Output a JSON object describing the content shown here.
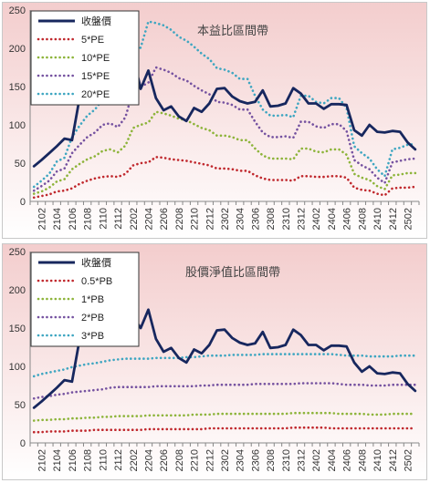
{
  "chart_data": [
    {
      "type": "line",
      "title": "本益比區間帶",
      "ylim": [
        0,
        250
      ],
      "yticks": [
        0,
        50,
        100,
        150,
        200,
        250
      ],
      "x": [
        "2101",
        "2102",
        "2103",
        "2104",
        "2105",
        "2106",
        "2107",
        "2108",
        "2109",
        "2110",
        "2111",
        "2112",
        "2201",
        "2202",
        "2203",
        "2204",
        "2205",
        "2206",
        "2207",
        "2208",
        "2209",
        "2210",
        "2211",
        "2212",
        "2301",
        "2302",
        "2303",
        "2304",
        "2305",
        "2306",
        "2307",
        "2308",
        "2309",
        "2310",
        "2311",
        "2312",
        "2401",
        "2402",
        "2403",
        "2404",
        "2405",
        "2406",
        "2407",
        "2408",
        "2409",
        "2410",
        "2411",
        "2412",
        "2501",
        "2502",
        "2503"
      ],
      "xtick_labels": [
        "2102",
        "2104",
        "2106",
        "2108",
        "2110",
        "2112",
        "2202",
        "2204",
        "2206",
        "2208",
        "2210",
        "2212",
        "2302",
        "2304",
        "2306",
        "2308",
        "2310",
        "2312",
        "2402",
        "2404",
        "2406",
        "2408",
        "2410",
        "2412",
        "2502"
      ],
      "legend": "top-left",
      "series": [
        {
          "name": "收盤價",
          "color": "#17275e",
          "dash": "solid",
          "values": [
            46,
            54,
            63,
            72,
            82,
            80,
            136,
            145,
            147,
            142,
            140,
            138,
            132,
            190,
            147,
            171,
            135,
            119,
            124,
            111,
            105,
            122,
            117,
            128,
            147,
            148,
            137,
            131,
            128,
            130,
            145,
            124,
            125,
            128,
            148,
            141,
            128,
            128,
            121,
            127,
            127,
            126,
            93,
            86,
            100,
            91,
            90,
            92,
            91,
            77,
            68
          ]
        },
        {
          "name": "5*PE",
          "color": "#c0282d",
          "dash": "dot",
          "values": [
            5,
            7,
            9,
            13,
            14,
            17,
            23,
            27,
            30,
            32,
            33,
            32,
            36,
            47,
            50,
            51,
            58,
            57,
            55,
            54,
            53,
            51,
            49,
            47,
            43,
            43,
            42,
            40,
            40,
            34,
            30,
            28,
            28,
            28,
            27,
            33,
            33,
            32,
            32,
            33,
            33,
            31,
            18,
            15,
            14,
            10,
            8,
            17,
            18,
            18,
            19
          ]
        },
        {
          "name": "10*PE",
          "color": "#8db43a",
          "dash": "dot",
          "values": [
            10,
            13,
            18,
            26,
            29,
            42,
            49,
            55,
            59,
            66,
            68,
            64,
            73,
            96,
            100,
            103,
            117,
            115,
            112,
            108,
            106,
            101,
            96,
            93,
            86,
            86,
            84,
            80,
            80,
            69,
            60,
            56,
            56,
            56,
            55,
            69,
            69,
            65,
            64,
            68,
            68,
            61,
            36,
            31,
            28,
            20,
            16,
            34,
            35,
            37,
            37
          ]
        },
        {
          "name": "15*PE",
          "color": "#7552a0",
          "dash": "dot",
          "values": [
            14,
            20,
            27,
            39,
            43,
            63,
            74,
            84,
            90,
            100,
            102,
            97,
            110,
            145,
            150,
            155,
            175,
            172,
            168,
            161,
            158,
            151,
            145,
            140,
            130,
            129,
            126,
            120,
            120,
            104,
            90,
            84,
            84,
            85,
            83,
            104,
            104,
            98,
            96,
            101,
            101,
            92,
            54,
            47,
            42,
            31,
            24,
            51,
            53,
            55,
            56
          ]
        },
        {
          "name": "20*PE",
          "color": "#3ea6c1",
          "dash": "dot",
          "values": [
            19,
            27,
            36,
            52,
            57,
            84,
            99,
            112,
            120,
            133,
            137,
            129,
            146,
            193,
            201,
            235,
            233,
            230,
            224,
            215,
            210,
            202,
            193,
            186,
            174,
            172,
            168,
            160,
            160,
            138,
            120,
            112,
            112,
            113,
            110,
            138,
            138,
            130,
            128,
            135,
            135,
            122,
            72,
            63,
            56,
            42,
            33,
            68,
            70,
            74,
            75
          ]
        }
      ]
    },
    {
      "type": "line",
      "title": "股價淨值比區間帶",
      "ylim": [
        0,
        250
      ],
      "yticks": [
        0,
        50,
        100,
        150,
        200,
        250
      ],
      "x": [
        "2101",
        "2102",
        "2103",
        "2104",
        "2105",
        "2106",
        "2107",
        "2108",
        "2109",
        "2110",
        "2111",
        "2112",
        "2201",
        "2202",
        "2203",
        "2204",
        "2205",
        "2206",
        "2207",
        "2208",
        "2209",
        "2210",
        "2211",
        "2212",
        "2301",
        "2302",
        "2303",
        "2304",
        "2305",
        "2306",
        "2307",
        "2308",
        "2309",
        "2310",
        "2311",
        "2312",
        "2401",
        "2402",
        "2403",
        "2404",
        "2405",
        "2406",
        "2407",
        "2408",
        "2409",
        "2410",
        "2411",
        "2412",
        "2501",
        "2502",
        "2503"
      ],
      "xtick_labels": [
        "2102",
        "2104",
        "2106",
        "2108",
        "2110",
        "2112",
        "2202",
        "2204",
        "2206",
        "2208",
        "2210",
        "2212",
        "2302",
        "2304",
        "2306",
        "2308",
        "2310",
        "2312",
        "2402",
        "2404",
        "2406",
        "2408",
        "2410",
        "2412",
        "2502"
      ],
      "legend": "top-left",
      "series": [
        {
          "name": "收盤價",
          "color": "#17275e",
          "dash": "solid",
          "values": [
            46,
            54,
            63,
            72,
            82,
            80,
            136,
            165,
            147,
            153,
            140,
            145,
            139,
            165,
            150,
            174,
            136,
            119,
            124,
            111,
            105,
            122,
            117,
            128,
            147,
            148,
            137,
            131,
            128,
            130,
            145,
            124,
            125,
            128,
            148,
            141,
            128,
            128,
            121,
            127,
            127,
            126,
            105,
            93,
            100,
            91,
            90,
            92,
            91,
            77,
            68
          ]
        },
        {
          "name": "0.5*PB",
          "color": "#c0282d",
          "dash": "dot",
          "values": [
            14,
            14,
            15,
            15,
            15,
            16,
            16,
            16,
            17,
            17,
            17,
            17,
            17,
            17,
            17,
            18,
            18,
            18,
            18,
            18,
            18,
            18,
            18,
            19,
            19,
            19,
            19,
            19,
            19,
            19,
            19,
            19,
            19,
            19,
            20,
            20,
            20,
            20,
            20,
            19,
            19,
            19,
            19,
            19,
            19,
            19,
            19,
            19,
            19,
            19,
            19
          ]
        },
        {
          "name": "1*PB",
          "color": "#8db43a",
          "dash": "dot",
          "values": [
            29,
            30,
            30,
            31,
            31,
            32,
            32,
            33,
            33,
            34,
            34,
            35,
            35,
            35,
            35,
            36,
            36,
            36,
            36,
            36,
            36,
            37,
            37,
            37,
            38,
            38,
            38,
            38,
            38,
            38,
            38,
            38,
            38,
            38,
            39,
            39,
            39,
            39,
            39,
            39,
            38,
            38,
            38,
            38,
            37,
            37,
            37,
            38,
            38,
            38,
            38
          ]
        },
        {
          "name": "2*PB",
          "color": "#7552a0",
          "dash": "dot",
          "values": [
            58,
            60,
            61,
            63,
            64,
            66,
            67,
            68,
            69,
            70,
            72,
            73,
            73,
            73,
            73,
            73,
            74,
            74,
            74,
            74,
            74,
            74,
            75,
            75,
            76,
            76,
            76,
            76,
            76,
            77,
            77,
            77,
            77,
            77,
            77,
            78,
            78,
            78,
            78,
            78,
            77,
            76,
            76,
            76,
            75,
            75,
            75,
            76,
            76,
            76,
            76
          ]
        },
        {
          "name": "3*PB",
          "color": "#3ea6c1",
          "dash": "dot",
          "values": [
            87,
            90,
            92,
            94,
            96,
            99,
            101,
            103,
            104,
            106,
            108,
            109,
            110,
            110,
            110,
            110,
            111,
            111,
            111,
            111,
            112,
            112,
            113,
            114,
            114,
            114,
            115,
            115,
            115,
            115,
            116,
            116,
            116,
            116,
            116,
            116,
            116,
            116,
            116,
            116,
            115,
            114,
            114,
            114,
            113,
            113,
            113,
            113,
            114,
            114,
            114
          ]
        }
      ]
    }
  ]
}
